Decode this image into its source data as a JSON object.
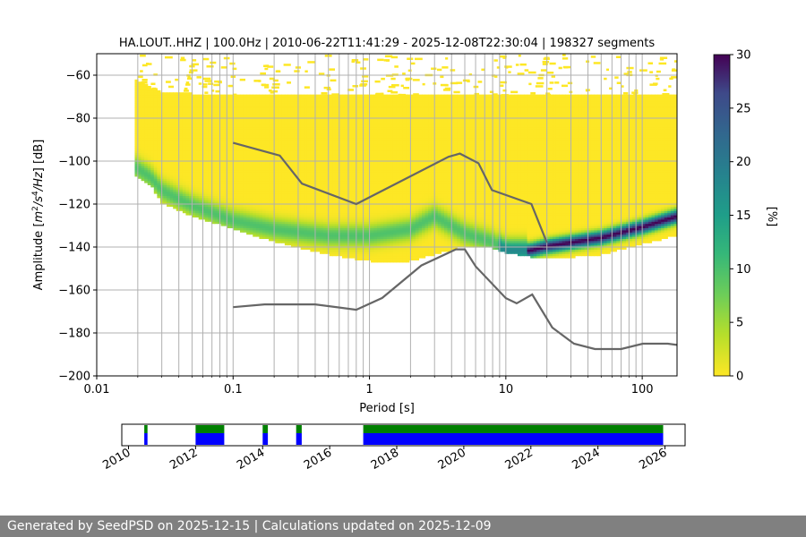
{
  "chart_data": [
    {
      "type": "heatmap",
      "title": "HA.LOUT..HHZ | 100.0Hz | 2010-06-22T11:41:29 - 2025-12-08T22:30:04 | 198327 segments",
      "xlabel": "Period [s]",
      "ylabel_parts": [
        "Amplitude [",
        "m",
        "2",
        "/s",
        "4",
        "/Hz",
        "] [dB]"
      ],
      "x_scale": "log",
      "xlim": [
        0.01,
        180
      ],
      "ylim": [
        -200,
        -50
      ],
      "x_ticks": [
        0.01,
        0.1,
        1,
        10,
        100
      ],
      "x_tick_labels": [
        "0.01",
        "0.1",
        "1",
        "10",
        "100"
      ],
      "y_ticks": [
        -200,
        -180,
        -160,
        -140,
        -120,
        -100,
        -80,
        -60
      ],
      "y_tick_labels": [
        "−200",
        "−180",
        "−160",
        "−140",
        "−120",
        "−100",
        "−80",
        "−60"
      ],
      "grid": true,
      "colorbar": {
        "label": "[%]",
        "range": [
          0,
          30
        ],
        "ticks": [
          0,
          5,
          10,
          15,
          20,
          25,
          30
        ],
        "colormap": "viridis_r"
      },
      "psd_extent": {
        "period": [
          0.019,
          0.025,
          0.03,
          0.05,
          0.1,
          0.2,
          0.5,
          1,
          2,
          3,
          5,
          8,
          10,
          15,
          20,
          50,
          100,
          180
        ],
        "upper_db": [
          -62,
          -66,
          -68,
          -69,
          -70,
          -70,
          -70,
          -70,
          -70,
          -70,
          -70,
          -70,
          -70,
          -70,
          -70,
          -70,
          -70,
          -70
        ],
        "lower_db": [
          -107,
          -112,
          -120,
          -126,
          -132,
          -138,
          -144,
          -147,
          -147,
          -144,
          -140,
          -141,
          -143,
          -145,
          -146,
          -144,
          -139,
          -135
        ],
        "mode_db": [
          -103,
          -108,
          -114,
          -121,
          -128,
          -132,
          -135,
          -135,
          -132,
          -126,
          -134,
          -138,
          -142,
          -142,
          -140,
          -136,
          -131,
          -126
        ]
      },
      "nhnm": {
        "period": [
          0.1,
          0.22,
          0.32,
          0.8,
          3.8,
          4.6,
          6.3,
          7.9,
          15.4,
          20
        ],
        "db": [
          -91.5,
          -97.4,
          -110.5,
          -120,
          -98,
          -96.5,
          -101,
          -113.5,
          -120,
          -138
        ]
      },
      "nlnm": {
        "period": [
          0.1,
          0.17,
          0.4,
          0.8,
          1.24,
          2.4,
          4.3,
          5,
          6,
          10,
          12,
          15.6,
          21.9,
          31.6,
          45,
          70,
          101,
          154,
          180
        ],
        "db": [
          -168,
          -166.7,
          -166.7,
          -169.2,
          -163.7,
          -148.6,
          -141.1,
          -141.1,
          -149,
          -163.8,
          -166.2,
          -162.1,
          -177.5,
          -185,
          -187.5,
          -187.5,
          -185,
          -185,
          -185.6
        ]
      }
    },
    {
      "type": "timeline",
      "x_ticks": [
        "2010",
        "2012",
        "2014",
        "2016",
        "2018",
        "2020",
        "2022",
        "2024",
        "2026"
      ],
      "year_range": [
        2009.8,
        2026.6
      ],
      "colors": {
        "top": "#008000",
        "bottom": "#0000ff"
      },
      "data_years": [
        2010.47,
        2010.55,
        2012.0,
        2012.1,
        2012.12,
        2012.28,
        2012.32,
        2012.45,
        2012.53,
        2012.56,
        2012.6,
        2012.63,
        2012.75,
        2012.78,
        2012.84,
        2014.0,
        2014.04,
        2014.1,
        2014.14,
        2015.0,
        2015.05,
        2015.15,
        2016.48,
        2017.0,
        2017.1,
        2017.2,
        2017.25,
        2017.5,
        2017.75,
        2018.0,
        2018.25,
        2018.5,
        2018.75,
        2019.0,
        2019.28,
        2019.33,
        2019.6,
        2019.65,
        2019.75,
        2020.0,
        2020.1,
        2020.35,
        2020.6,
        2020.85,
        2021.0,
        2021.05,
        2021.3,
        2021.55,
        2021.8,
        2022.0,
        2022.05,
        2022.3,
        2022.55,
        2022.8,
        2023.0,
        2023.25,
        2023.5,
        2023.75,
        2024.0,
        2024.25,
        2024.5,
        2024.75,
        2025.0,
        2025.25,
        2025.5,
        2025.75,
        2025.93
      ]
    }
  ],
  "footer": {
    "text": "Generated by SeedPSD on 2025-12-15 | Calculations updated on 2025-12-09"
  }
}
